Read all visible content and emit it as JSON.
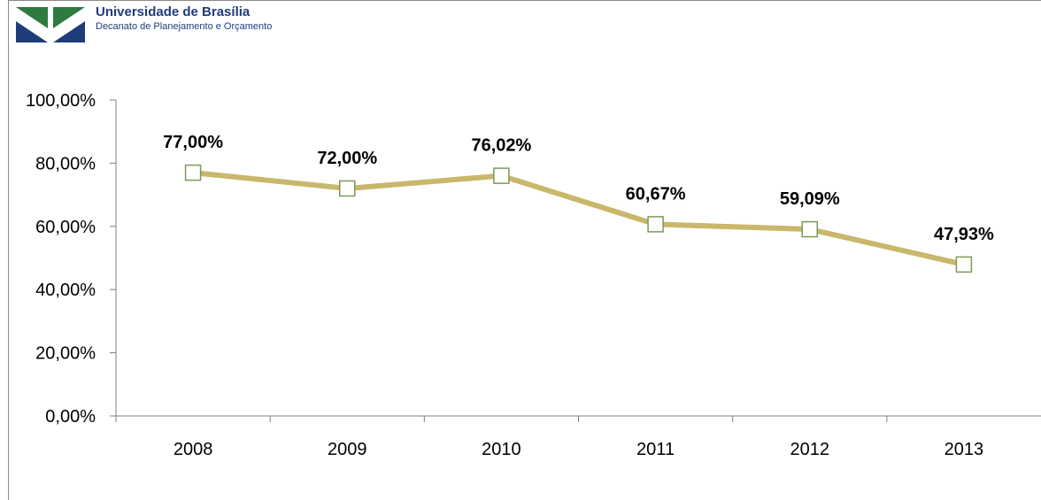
{
  "header": {
    "institution": "Universidade de Brasília",
    "department": "Decanato de Planejamento e Orçamento",
    "colors": {
      "green": "#2f7a3f",
      "blue": "#1f3c7a"
    }
  },
  "chart_data": {
    "type": "line",
    "categories": [
      "2008",
      "2009",
      "2010",
      "2011",
      "2012",
      "2013"
    ],
    "values": [
      77.0,
      72.0,
      76.02,
      60.67,
      59.09,
      47.93
    ],
    "data_labels": [
      "77,00%",
      "72,00%",
      "76,02%",
      "60,67%",
      "59,09%",
      "47,93%"
    ],
    "y_tick_labels": [
      "0,00%",
      "20,00%",
      "40,00%",
      "60,00%",
      "80,00%",
      "100,00%"
    ],
    "ylim": [
      0,
      100
    ],
    "grid": false,
    "colors": {
      "line": "#c9b76b",
      "marker_edge": "#7b9a55",
      "marker_fill": "#ffffff"
    }
  }
}
